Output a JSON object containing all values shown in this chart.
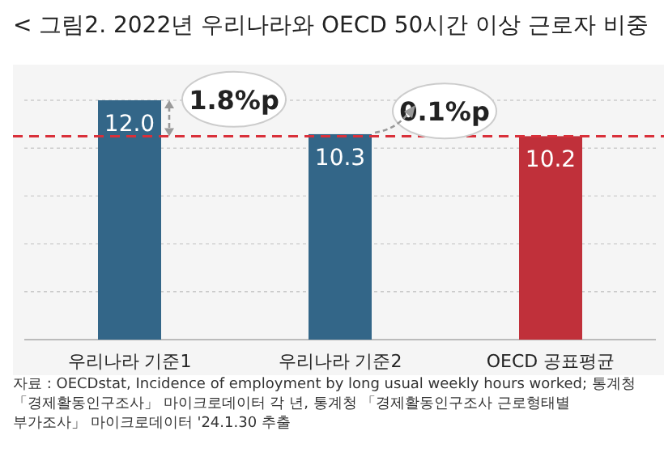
{
  "chart_data": {
    "type": "bar",
    "title": "< 그림2. 2022년 우리나라와 OECD 50시간 이상 근로자 비중",
    "categories": [
      "우리나라 기준1",
      "우리나라 기준2",
      "OECD 공표평균"
    ],
    "values": [
      12.0,
      10.3,
      10.2
    ],
    "colors": [
      "#336688",
      "#336688",
      "#c0303a"
    ],
    "value_labels": [
      "12.0",
      "10.3",
      "10.2"
    ],
    "ylim": [
      0,
      12
    ],
    "yticks": [
      {
        "value": 0,
        "label": null
      },
      {
        "value": 2.4,
        "label": null
      },
      {
        "value": 4.8,
        "label": null
      },
      {
        "value": 7.2,
        "label": null
      },
      {
        "value": 9.6,
        "label": null
      },
      {
        "value": 12,
        "label": null
      }
    ],
    "tick_labels": "x",
    "grid": "y",
    "ref_lines": [
      {
        "axis": "y",
        "value": 10.2,
        "color": "#d9303a",
        "line_style": "dashed"
      }
    ],
    "annotations": [
      "1.8%p",
      "0.1%p",
      "자료 : OECDstat, Incidence of employment by long usual weekly hours worked; 통계청 「경제활동인구조사」 마이크로데이터 각 년, 통계청 「경제활동인구조사 근로형태별 부가조사」 마이크로데이터 '24.1.30 추출"
    ]
  }
}
